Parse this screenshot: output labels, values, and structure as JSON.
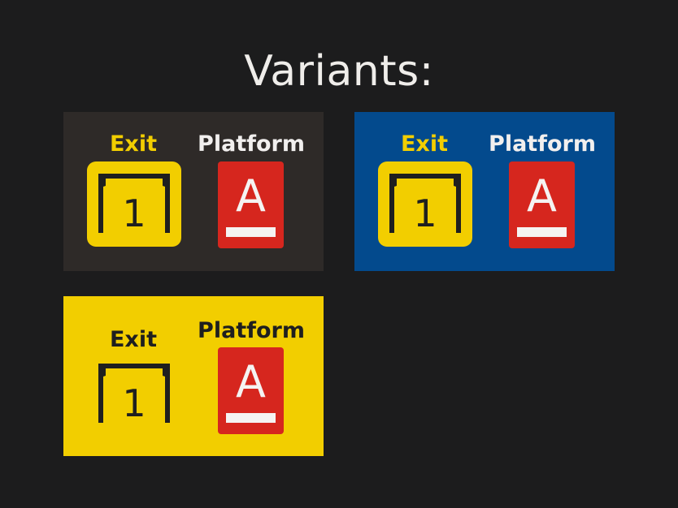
{
  "title": "Variants:",
  "panels": [
    {
      "id": "dark",
      "background": "#2e2a28",
      "exit_label": "Exit",
      "platform_label": "Platform",
      "exit_number": "1",
      "platform_letter": "A"
    },
    {
      "id": "blue",
      "background": "#034a8d",
      "exit_label": "Exit",
      "platform_label": "Platform",
      "exit_number": "1",
      "platform_letter": "A"
    },
    {
      "id": "yellow",
      "background": "#f2ce00",
      "exit_label": "Exit",
      "platform_label": "Platform",
      "exit_number": "1",
      "platform_letter": "A"
    }
  ],
  "colors": {
    "page_background": "#1c1c1d",
    "exit_yellow": "#f2ce00",
    "platform_red": "#d6261e",
    "sign_text_dark": "#1f1f1f",
    "sign_text_light": "#f1efee"
  },
  "icons": {
    "exit": "doorway-frame-icon",
    "platform": "underlined-letter-icon"
  }
}
